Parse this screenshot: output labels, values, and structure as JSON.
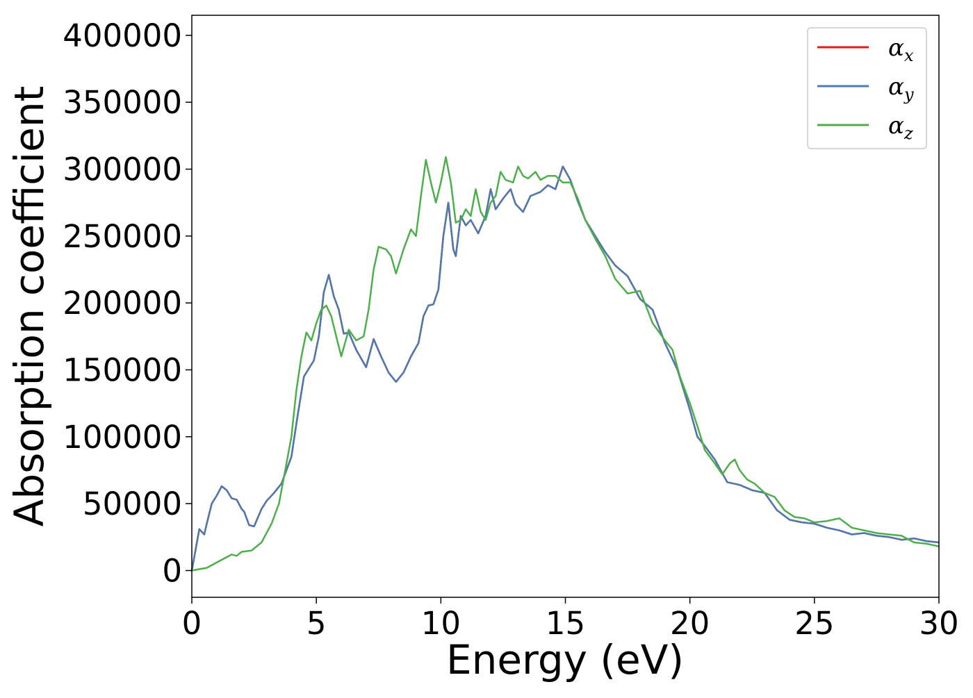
{
  "chart_data": {
    "type": "line",
    "xlabel": "Energy (eV)",
    "ylabel": "Absorption coefficient",
    "xlim": [
      0,
      30
    ],
    "ylim": [
      -20000,
      415000
    ],
    "xticks": [
      0,
      5,
      10,
      15,
      20,
      25,
      30
    ],
    "yticks": [
      0,
      50000,
      100000,
      150000,
      200000,
      250000,
      300000,
      350000,
      400000
    ],
    "grid": false,
    "legend_position": "top-right",
    "series": [
      {
        "name": "α_x",
        "label_base": "α",
        "label_sub": "x",
        "color": "#e41a1c",
        "x": [
          0,
          0.3,
          0.5,
          0.6,
          0.8,
          1.0,
          1.2,
          1.4,
          1.6,
          1.8,
          2.0,
          2.1,
          2.3,
          2.5,
          2.8,
          3.0,
          3.3,
          3.6,
          4.0,
          4.2,
          4.5,
          4.7,
          4.9,
          5.1,
          5.3,
          5.5,
          5.7,
          5.9,
          6.1,
          6.3,
          6.6,
          7.0,
          7.3,
          7.6,
          7.9,
          8.2,
          8.5,
          8.8,
          9.1,
          9.3,
          9.5,
          9.7,
          9.9,
          10.1,
          10.3,
          10.5,
          10.6,
          10.8,
          11.0,
          11.2,
          11.5,
          11.8,
          12.0,
          12.2,
          12.5,
          12.8,
          13.0,
          13.3,
          13.6,
          14.0,
          14.3,
          14.6,
          14.9,
          15.2,
          15.5,
          15.8,
          16.2,
          16.6,
          17.0,
          17.5,
          18.0,
          18.5,
          19.0,
          19.5,
          20.0,
          20.3,
          20.6,
          21.0,
          21.5,
          22.0,
          22.5,
          23.0,
          23.5,
          24.0,
          24.5,
          25.0,
          25.5,
          26.0,
          26.5,
          27.0,
          27.5,
          28.0,
          28.5,
          29.0,
          29.5,
          30.0
        ],
        "y": [
          0,
          31000,
          27000,
          35000,
          50000,
          56000,
          63000,
          60000,
          54000,
          53000,
          46000,
          44000,
          34000,
          33000,
          46000,
          52000,
          58000,
          65000,
          85000,
          110000,
          145000,
          151000,
          157000,
          175000,
          208000,
          221000,
          205000,
          195000,
          177000,
          178000,
          165000,
          152000,
          173000,
          160000,
          148000,
          141000,
          148000,
          160000,
          170000,
          190000,
          198000,
          199000,
          210000,
          250000,
          275000,
          240000,
          235000,
          265000,
          258000,
          262000,
          252000,
          265000,
          285000,
          270000,
          278000,
          285000,
          274000,
          268000,
          280000,
          283000,
          288000,
          285000,
          302000,
          292000,
          276000,
          262000,
          250000,
          238000,
          228000,
          220000,
          203000,
          195000,
          170000,
          150000,
          120000,
          100000,
          93000,
          83000,
          66000,
          64000,
          60000,
          58000,
          45000,
          38000,
          36000,
          35000,
          32000,
          30000,
          27000,
          28000,
          26000,
          25000,
          23000,
          24000,
          22000,
          21000
        ]
      },
      {
        "name": "α_y",
        "label_base": "α",
        "label_sub": "y",
        "color": "#4a7ab0",
        "x": [
          0,
          0.3,
          0.5,
          0.6,
          0.8,
          1.0,
          1.2,
          1.4,
          1.6,
          1.8,
          2.0,
          2.1,
          2.3,
          2.5,
          2.8,
          3.0,
          3.3,
          3.6,
          4.0,
          4.2,
          4.5,
          4.7,
          4.9,
          5.1,
          5.3,
          5.5,
          5.7,
          5.9,
          6.1,
          6.3,
          6.6,
          7.0,
          7.3,
          7.6,
          7.9,
          8.2,
          8.5,
          8.8,
          9.1,
          9.3,
          9.5,
          9.7,
          9.9,
          10.1,
          10.3,
          10.5,
          10.6,
          10.8,
          11.0,
          11.2,
          11.5,
          11.8,
          12.0,
          12.2,
          12.5,
          12.8,
          13.0,
          13.3,
          13.6,
          14.0,
          14.3,
          14.6,
          14.9,
          15.2,
          15.5,
          15.8,
          16.2,
          16.6,
          17.0,
          17.5,
          18.0,
          18.5,
          19.0,
          19.5,
          20.0,
          20.3,
          20.6,
          21.0,
          21.5,
          22.0,
          22.5,
          23.0,
          23.5,
          24.0,
          24.5,
          25.0,
          25.5,
          26.0,
          26.5,
          27.0,
          27.5,
          28.0,
          28.5,
          29.0,
          29.5,
          30.0
        ],
        "y": [
          0,
          31000,
          27000,
          35000,
          50000,
          56000,
          63000,
          60000,
          54000,
          53000,
          46000,
          44000,
          34000,
          33000,
          46000,
          52000,
          58000,
          65000,
          85000,
          110000,
          145000,
          151000,
          157000,
          175000,
          208000,
          221000,
          205000,
          195000,
          177000,
          178000,
          165000,
          152000,
          173000,
          160000,
          148000,
          141000,
          148000,
          160000,
          170000,
          190000,
          198000,
          199000,
          210000,
          250000,
          275000,
          240000,
          235000,
          265000,
          258000,
          262000,
          252000,
          265000,
          285000,
          270000,
          278000,
          285000,
          274000,
          268000,
          280000,
          283000,
          288000,
          285000,
          302000,
          292000,
          276000,
          262000,
          250000,
          238000,
          228000,
          220000,
          203000,
          195000,
          170000,
          150000,
          120000,
          100000,
          93000,
          83000,
          66000,
          64000,
          60000,
          58000,
          45000,
          38000,
          36000,
          35000,
          32000,
          30000,
          27000,
          28000,
          26000,
          25000,
          23000,
          24000,
          22000,
          21000
        ]
      },
      {
        "name": "α_z",
        "label_base": "α",
        "label_sub": "z",
        "color": "#4daf4a",
        "x": [
          0,
          0.3,
          0.6,
          1.0,
          1.3,
          1.6,
          1.8,
          2.0,
          2.4,
          2.8,
          3.0,
          3.2,
          3.5,
          3.8,
          4.0,
          4.2,
          4.4,
          4.6,
          4.8,
          5.0,
          5.2,
          5.4,
          5.6,
          5.8,
          6.0,
          6.3,
          6.6,
          6.9,
          7.1,
          7.3,
          7.5,
          7.8,
          8.0,
          8.2,
          8.5,
          8.8,
          9.0,
          9.2,
          9.4,
          9.6,
          9.8,
          10.0,
          10.2,
          10.4,
          10.6,
          10.8,
          11.0,
          11.2,
          11.4,
          11.6,
          11.8,
          12.0,
          12.2,
          12.4,
          12.6,
          12.9,
          13.1,
          13.3,
          13.5,
          13.8,
          14.0,
          14.3,
          14.6,
          14.9,
          15.2,
          15.5,
          15.8,
          16.2,
          16.6,
          17.0,
          17.5,
          18.0,
          18.5,
          19.0,
          19.3,
          19.6,
          20.0,
          20.3,
          20.6,
          21.0,
          21.3,
          21.6,
          21.8,
          22.0,
          22.3,
          22.6,
          23.0,
          23.4,
          23.8,
          24.2,
          24.6,
          25.0,
          25.5,
          26.0,
          26.5,
          27.0,
          27.5,
          28.0,
          28.5,
          29.0,
          29.5,
          30.0
        ],
        "y": [
          0,
          1000,
          2000,
          6000,
          9000,
          12000,
          11000,
          14000,
          15000,
          21000,
          28000,
          35000,
          50000,
          80000,
          100000,
          135000,
          160000,
          178000,
          172000,
          185000,
          195000,
          198000,
          190000,
          175000,
          160000,
          180000,
          172000,
          175000,
          195000,
          225000,
          242000,
          240000,
          235000,
          222000,
          240000,
          255000,
          250000,
          280000,
          307000,
          290000,
          275000,
          290000,
          309000,
          290000,
          260000,
          262000,
          270000,
          265000,
          285000,
          268000,
          262000,
          275000,
          280000,
          298000,
          292000,
          290000,
          302000,
          295000,
          293000,
          298000,
          292000,
          295000,
          295000,
          290000,
          290000,
          278000,
          262000,
          248000,
          235000,
          218000,
          207000,
          209000,
          185000,
          172000,
          165000,
          145000,
          125000,
          108000,
          90000,
          80000,
          72000,
          80000,
          83000,
          75000,
          68000,
          65000,
          58000,
          55000,
          45000,
          40000,
          39000,
          36000,
          37000,
          39000,
          32000,
          30000,
          28000,
          27000,
          26000,
          21000,
          20000,
          18000
        ]
      }
    ]
  }
}
